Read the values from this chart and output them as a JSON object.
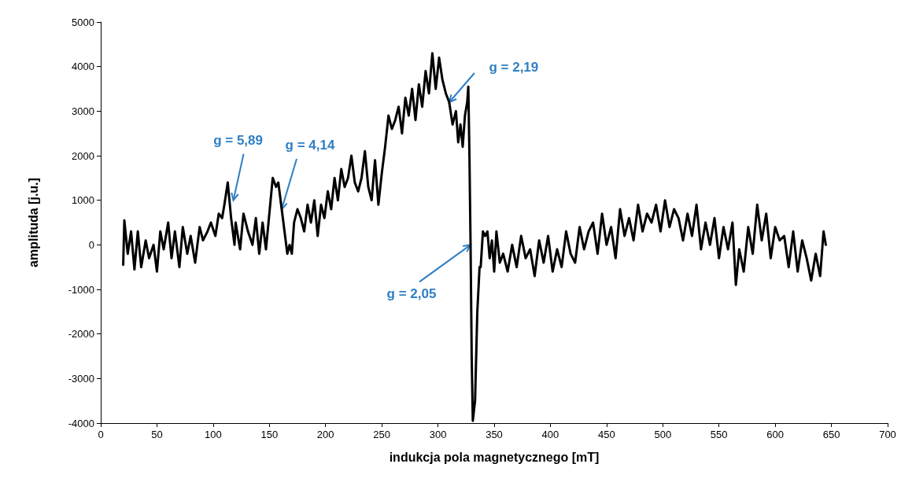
{
  "chart_data": {
    "type": "line",
    "xlabel": "indukcja pola magnetycznego [mT]",
    "ylabel": "amplituda [j.u.]",
    "xlim": [
      0,
      700
    ],
    "xticks": [
      0,
      50,
      100,
      150,
      200,
      250,
      300,
      350,
      400,
      450,
      500,
      550,
      600,
      650,
      700
    ],
    "ylim": [
      -4000,
      5000
    ],
    "yticks": [
      -4000,
      -3000,
      -2000,
      -1000,
      0,
      1000,
      2000,
      3000,
      4000,
      5000
    ],
    "grid": false,
    "marker": "none",
    "line_style": "solid",
    "series": [
      {
        "color": "#000000",
        "x": [
          20,
          21,
          24,
          27,
          30,
          33,
          36,
          40,
          43,
          47,
          50,
          53,
          56,
          60,
          63,
          66,
          70,
          73,
          77,
          80,
          84,
          88,
          91,
          95,
          98,
          102,
          105,
          108,
          110,
          113,
          116,
          119,
          120,
          124,
          127,
          131,
          135,
          138,
          141,
          144,
          147,
          150,
          153,
          156,
          158,
          161,
          164,
          166,
          168,
          170,
          172,
          175,
          178,
          181,
          184,
          187,
          190,
          193,
          196,
          199,
          202,
          205,
          208,
          211,
          214,
          217,
          220,
          223,
          226,
          229,
          232,
          235,
          238,
          241,
          244,
          247,
          250,
          253,
          256,
          259,
          262,
          265,
          268,
          271,
          274,
          277,
          280,
          283,
          286,
          289,
          292,
          295,
          298,
          301,
          304,
          307,
          310,
          313,
          316,
          318,
          320,
          322,
          324,
          326,
          327,
          328,
          329,
          330,
          331,
          333,
          335,
          337,
          338,
          340,
          342,
          344,
          346,
          348,
          350,
          352,
          355,
          358,
          362,
          366,
          370,
          374,
          378,
          382,
          386,
          390,
          394,
          398,
          402,
          406,
          410,
          414,
          418,
          422,
          426,
          430,
          434,
          438,
          442,
          446,
          450,
          454,
          458,
          462,
          466,
          470,
          474,
          478,
          482,
          486,
          490,
          494,
          498,
          502,
          506,
          510,
          514,
          518,
          522,
          526,
          530,
          534,
          538,
          542,
          546,
          550,
          554,
          558,
          562,
          565,
          568,
          572,
          576,
          580,
          584,
          588,
          592,
          596,
          600,
          604,
          608,
          612,
          616,
          620,
          624,
          628,
          632,
          636,
          640,
          643,
          645
        ],
        "values": [
          -450,
          550,
          -200,
          300,
          -550,
          300,
          -500,
          100,
          -300,
          0,
          -600,
          300,
          -100,
          500,
          -300,
          300,
          -500,
          400,
          -200,
          200,
          -400,
          400,
          100,
          300,
          500,
          200,
          700,
          600,
          900,
          1400,
          600,
          0,
          500,
          -100,
          700,
          300,
          0,
          600,
          -200,
          500,
          -100,
          700,
          1500,
          1300,
          1400,
          800,
          200,
          -200,
          0,
          -200,
          500,
          800,
          600,
          300,
          900,
          500,
          1000,
          200,
          900,
          600,
          1200,
          800,
          1500,
          1000,
          1700,
          1300,
          1500,
          2000,
          1400,
          1200,
          1500,
          2100,
          1300,
          1000,
          1900,
          900,
          1600,
          2200,
          2900,
          2600,
          2800,
          3100,
          2500,
          3300,
          2900,
          3500,
          2800,
          3600,
          3100,
          3900,
          3400,
          4300,
          3500,
          4200,
          3700,
          3400,
          3200,
          2700,
          3000,
          2300,
          2700,
          2200,
          2900,
          3200,
          3550,
          2000,
          0,
          -2500,
          -3950,
          -3500,
          -1500,
          -500,
          -500,
          300,
          200,
          300,
          -300,
          100,
          -600,
          300,
          -400,
          -200,
          -600,
          0,
          -500,
          200,
          -300,
          -100,
          -700,
          100,
          -400,
          200,
          -600,
          -100,
          -500,
          300,
          -200,
          -400,
          400,
          -100,
          300,
          500,
          -200,
          700,
          0,
          400,
          -300,
          800,
          200,
          600,
          100,
          900,
          300,
          700,
          500,
          900,
          300,
          1000,
          400,
          800,
          600,
          100,
          700,
          200,
          900,
          -100,
          500,
          0,
          600,
          -300,
          400,
          -100,
          500,
          -900,
          -100,
          -600,
          400,
          -200,
          900,
          100,
          700,
          -300,
          400,
          100,
          200,
          -500,
          300,
          -600,
          100,
          -300,
          -800,
          -200,
          -700,
          300,
          0
        ]
      }
    ],
    "annotations": [
      {
        "text": "g = 5,89",
        "x": 118,
        "y": 1000
      },
      {
        "text": "g = 4,14",
        "x": 161,
        "y": 800
      },
      {
        "text": "g = 2,19",
        "x": 310,
        "y": 3200
      },
      {
        "text": "g = 2,05",
        "x": 329,
        "y": 0
      }
    ]
  }
}
